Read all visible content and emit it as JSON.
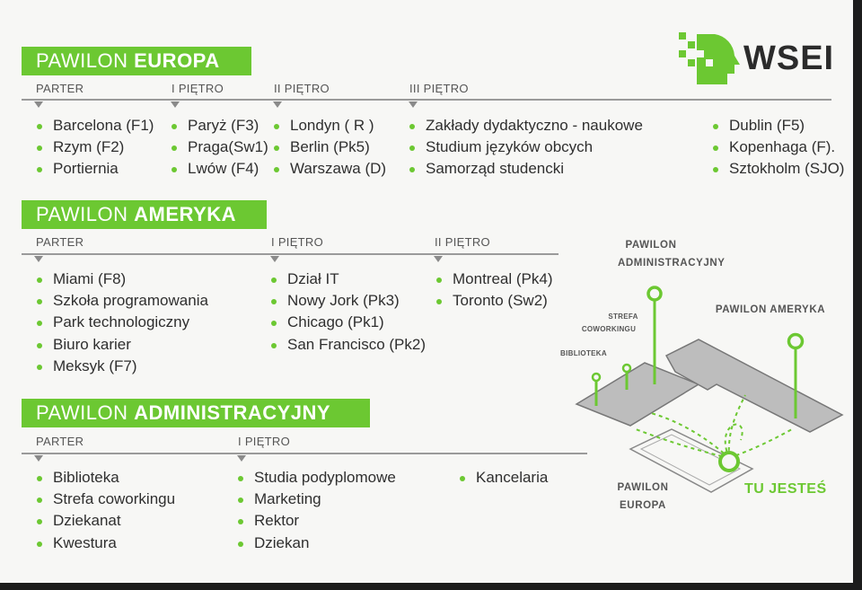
{
  "logo": {
    "text": "WSEI"
  },
  "europa": {
    "title_prefix": "PAWILON ",
    "title_bold": "EUROPA",
    "columns": [
      {
        "label": "PARTER",
        "items": [
          "Barcelona (F1)",
          "Rzym (F2)",
          "Portiernia"
        ]
      },
      {
        "label": "I PIĘTRO",
        "items": [
          "Paryż (F3)",
          "Praga(Sw1)",
          "Lwów (F4)"
        ]
      },
      {
        "label": "II PIĘTRO",
        "items": [
          "Londyn ( R )",
          "Berlin (Pk5)",
          "Warszawa (D)"
        ]
      },
      {
        "label": "III PIĘTRO",
        "items": [
          "Zakłady dydaktyczno - naukowe",
          "Studium języków obcych",
          "Samorząd studencki"
        ]
      },
      {
        "label": "",
        "items": [
          "Dublin (F5)",
          "Kopenhaga (F).",
          "Sztokholm (SJO)"
        ]
      }
    ]
  },
  "ameryka": {
    "title_prefix": "PAWILON ",
    "title_bold": "AMERYKA",
    "columns": [
      {
        "label": "PARTER",
        "items": [
          "Miami (F8)",
          "Szkoła programowania",
          "Park technologiczny",
          "Biuro karier",
          "Meksyk (F7)"
        ]
      },
      {
        "label": "I PIĘTRO",
        "items": [
          "Dział IT",
          "Nowy Jork (Pk3)",
          "Chicago (Pk1)",
          "San Francisco (Pk2)"
        ]
      },
      {
        "label": "II PIĘTRO",
        "items": [
          "Montreal (Pk4)",
          "Toronto (Sw2)"
        ]
      }
    ]
  },
  "administracyjny": {
    "title_prefix": "PAWILON ",
    "title_bold": "ADMINISTRACYJNY",
    "columns": [
      {
        "label": "PARTER",
        "items": [
          "Biblioteka",
          "Strefa coworkingu",
          "Dziekanat",
          "Kwestura"
        ]
      },
      {
        "label": "I PIĘTRO",
        "items": [
          "Studia podyplomowe",
          "Marketing",
          "Rektor",
          "Dziekan"
        ]
      },
      {
        "label": "",
        "items": [
          "Kancelaria"
        ]
      }
    ]
  },
  "map": {
    "label_admin": "PAWILON\nADMINISTRACYJNY",
    "label_admin_l1": "PAWILON",
    "label_admin_l2": "ADMINISTRACYJNY",
    "label_strefa_l1": "STREFA",
    "label_strefa_l2": "COWORKINGU",
    "label_biblioteka": "BIBLIOTEKA",
    "label_ameryka": "PAWILON AMERYKA",
    "label_europa_l1": "PAWILON",
    "label_europa_l2": "EUROPA",
    "you_are_here": "TU JESTEŚ",
    "accent": "#6cc832"
  },
  "colors": {
    "accent": "#6cc832",
    "rule": "#9a9a9a",
    "text": "#2f2f2f"
  }
}
